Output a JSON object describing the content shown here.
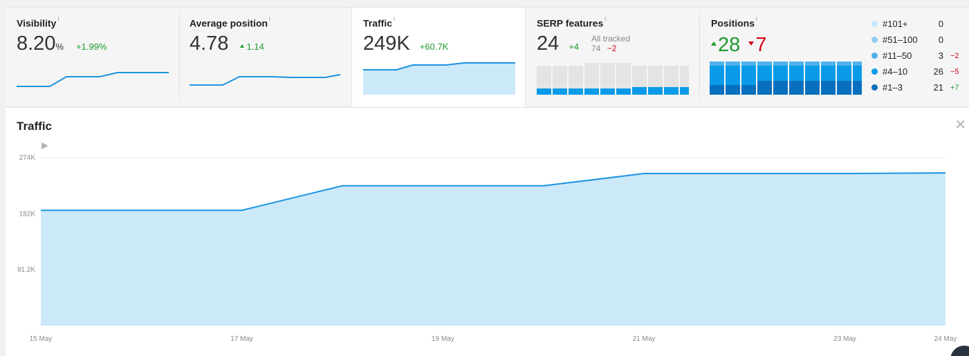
{
  "metrics": {
    "visibility": {
      "title": "Visibility",
      "info": "i",
      "value": "8.20",
      "unit": "%",
      "delta": "+1.99%",
      "spark": [
        0,
        0,
        1,
        1,
        1.2,
        1.2,
        1.2
      ]
    },
    "avg_position": {
      "title": "Average position",
      "info": "i",
      "value": "4.78",
      "delta": "1.14",
      "spark": [
        0,
        0,
        1,
        1,
        0.95,
        0.95,
        1.2
      ]
    },
    "traffic": {
      "title": "Traffic",
      "info": "i",
      "value": "249K",
      "delta": "+60.7K",
      "spark": [
        188,
        188,
        228,
        228,
        248,
        248,
        249
      ]
    },
    "serp": {
      "title": "SERP features",
      "info": "i",
      "value": "24",
      "delta": "+4",
      "tracked_label": "All tracked",
      "tracked_value": "74",
      "tracked_delta": "−2"
    },
    "positions": {
      "title": "Positions",
      "info": "i",
      "up": "28",
      "down": "7"
    }
  },
  "legend": [
    {
      "label": "#101+",
      "value": "0",
      "change": "",
      "color": "#c7e6fb",
      "change_type": ""
    },
    {
      "label": "#51–100",
      "value": "0",
      "change": "",
      "color": "#94cdf4",
      "change_type": ""
    },
    {
      "label": "#11–50",
      "value": "3",
      "change": "−2",
      "color": "#4fb1ea",
      "change_type": "red"
    },
    {
      "label": "#4–10",
      "value": "26",
      "change": "−5",
      "color": "#0a9be8",
      "change_type": "red"
    },
    {
      "label": "#1–3",
      "value": "21",
      "change": "+7",
      "color": "#076fbd",
      "change_type": "green"
    }
  ],
  "colors": {
    "accent": "#1b93e0",
    "area": "#cce9fa",
    "green": "#1a9c2c",
    "red": "#d0021b"
  },
  "main": {
    "title": "Traffic",
    "close_icon": "close-icon"
  },
  "chart_data": {
    "type": "area",
    "title": "Traffic",
    "x": [
      "15 May",
      "16 May",
      "17 May",
      "18 May",
      "19 May",
      "20 May",
      "21 May",
      "22 May",
      "23 May",
      "24 May"
    ],
    "values": [
      188000,
      188000,
      188000,
      228000,
      228000,
      228000,
      248000,
      248000,
      248000,
      249000
    ],
    "tick_labels_x": [
      "15 May",
      "17 May",
      "19 May",
      "21 May",
      "23 May",
      "24 May"
    ],
    "tick_labels_y": [
      "274K",
      "182K",
      "91.2K"
    ],
    "ylim": [
      0,
      274000
    ],
    "grid": true
  }
}
